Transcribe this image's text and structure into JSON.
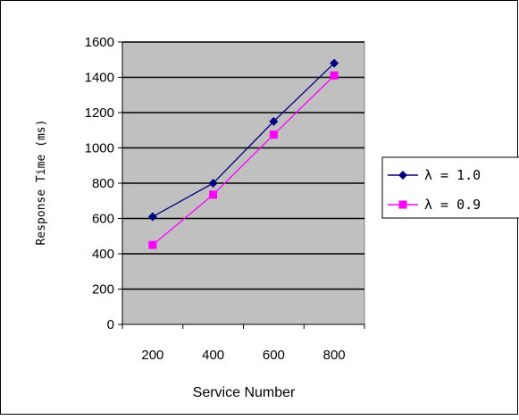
{
  "chart_data": {
    "type": "line",
    "x": [
      200,
      400,
      600,
      800
    ],
    "xlabel": "Service Number",
    "ylabel": "Response Time (ms)",
    "ylim": [
      0,
      1600
    ],
    "yticks": [
      0,
      200,
      400,
      600,
      800,
      1000,
      1200,
      1400,
      1600
    ],
    "xtick_labels": [
      "200",
      "400",
      "600",
      "800"
    ],
    "grid": "horizontal",
    "legend_position": "right",
    "series": [
      {
        "name": "λ = 1.0",
        "values": [
          610,
          800,
          1150,
          1480
        ],
        "color": "#000080",
        "marker": "diamond"
      },
      {
        "name": "λ = 0.9",
        "values": [
          450,
          735,
          1075,
          1410
        ],
        "color": "#ff00ff",
        "marker": "square"
      }
    ],
    "plot_background": "#c0c0c0"
  }
}
